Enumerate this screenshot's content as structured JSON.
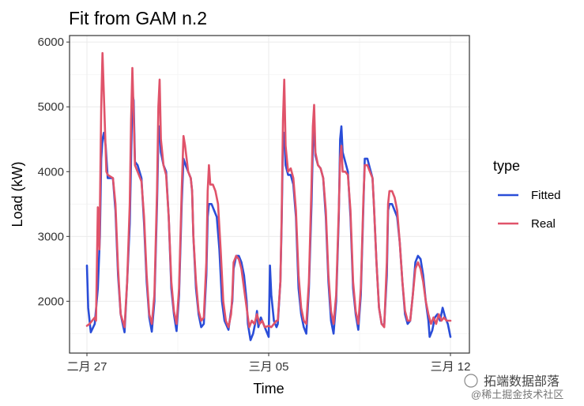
{
  "chart_data": {
    "type": "line",
    "title": "Fit from GAM n.2",
    "xlabel": "Time",
    "ylabel": "Load (kW)",
    "x_ticks": [
      "二月 27",
      "三月 05",
      "三月 12"
    ],
    "xlim": [
      0,
      14
    ],
    "ylim": [
      1200,
      6100
    ],
    "y_ticks": [
      2000,
      3000,
      4000,
      5000,
      6000
    ],
    "grid": true,
    "legend": {
      "title": "type",
      "position": "right"
    },
    "series": [
      {
        "name": "Fitted",
        "color": "#2a4dd8",
        "points": [
          [
            0.0,
            2550
          ],
          [
            0.05,
            1900
          ],
          [
            0.15,
            1520
          ],
          [
            0.3,
            1650
          ],
          [
            0.42,
            2200
          ],
          [
            0.5,
            3000
          ],
          [
            0.55,
            4200
          ],
          [
            0.6,
            4500
          ],
          [
            0.65,
            4600
          ],
          [
            0.72,
            4400
          ],
          [
            0.8,
            3900
          ],
          [
            1.0,
            3900
          ],
          [
            1.1,
            3400
          ],
          [
            1.2,
            2400
          ],
          [
            1.3,
            1800
          ],
          [
            1.45,
            1520
          ],
          [
            1.55,
            2300
          ],
          [
            1.65,
            3200
          ],
          [
            1.7,
            4200
          ],
          [
            1.75,
            5200
          ],
          [
            1.8,
            5100
          ],
          [
            1.85,
            4150
          ],
          [
            1.95,
            4100
          ],
          [
            2.1,
            3900
          ],
          [
            2.2,
            3200
          ],
          [
            2.3,
            2300
          ],
          [
            2.4,
            1750
          ],
          [
            2.5,
            1530
          ],
          [
            2.6,
            2000
          ],
          [
            2.7,
            3500
          ],
          [
            2.75,
            4500
          ],
          [
            2.8,
            4700
          ],
          [
            2.85,
            4300
          ],
          [
            2.95,
            4100
          ],
          [
            3.05,
            4000
          ],
          [
            3.15,
            3300
          ],
          [
            3.25,
            2200
          ],
          [
            3.35,
            1800
          ],
          [
            3.45,
            1540
          ],
          [
            3.55,
            2100
          ],
          [
            3.65,
            3500
          ],
          [
            3.72,
            4200
          ],
          [
            3.8,
            4100
          ],
          [
            3.9,
            4000
          ],
          [
            4.0,
            3900
          ],
          [
            4.05,
            3700
          ],
          [
            4.1,
            3000
          ],
          [
            4.2,
            2200
          ],
          [
            4.3,
            1800
          ],
          [
            4.4,
            1600
          ],
          [
            4.5,
            1650
          ],
          [
            4.6,
            2400
          ],
          [
            4.65,
            3300
          ],
          [
            4.7,
            3500
          ],
          [
            4.8,
            3500
          ],
          [
            4.9,
            3400
          ],
          [
            5.0,
            3300
          ],
          [
            5.1,
            2800
          ],
          [
            5.2,
            2000
          ],
          [
            5.3,
            1700
          ],
          [
            5.45,
            1560
          ],
          [
            5.6,
            2000
          ],
          [
            5.65,
            2500
          ],
          [
            5.75,
            2700
          ],
          [
            5.85,
            2700
          ],
          [
            5.95,
            2600
          ],
          [
            6.05,
            2400
          ],
          [
            6.15,
            2000
          ],
          [
            6.2,
            1650
          ],
          [
            6.3,
            1400
          ],
          [
            6.4,
            1500
          ],
          [
            6.5,
            1700
          ],
          [
            6.55,
            1850
          ],
          [
            6.6,
            1600
          ],
          [
            6.7,
            1750
          ],
          [
            6.8,
            1650
          ],
          [
            6.9,
            1550
          ],
          [
            7.0,
            1450
          ],
          [
            7.05,
            2550
          ],
          [
            7.1,
            2100
          ],
          [
            7.2,
            1700
          ],
          [
            7.3,
            1600
          ],
          [
            7.35,
            1650
          ],
          [
            7.45,
            2300
          ],
          [
            7.5,
            3200
          ],
          [
            7.55,
            4500
          ],
          [
            7.6,
            4600
          ],
          [
            7.65,
            4100
          ],
          [
            7.75,
            3950
          ],
          [
            7.85,
            3950
          ],
          [
            7.95,
            3800
          ],
          [
            8.05,
            3300
          ],
          [
            8.15,
            2200
          ],
          [
            8.25,
            1800
          ],
          [
            8.35,
            1600
          ],
          [
            8.45,
            1500
          ],
          [
            8.55,
            2200
          ],
          [
            8.65,
            3500
          ],
          [
            8.7,
            4400
          ],
          [
            8.75,
            4700
          ],
          [
            8.8,
            4250
          ],
          [
            8.9,
            4100
          ],
          [
            9.0,
            4050
          ],
          [
            9.1,
            3900
          ],
          [
            9.2,
            3300
          ],
          [
            9.3,
            2300
          ],
          [
            9.4,
            1700
          ],
          [
            9.5,
            1500
          ],
          [
            9.6,
            2000
          ],
          [
            9.7,
            3300
          ],
          [
            9.75,
            4500
          ],
          [
            9.8,
            4700
          ],
          [
            9.85,
            4300
          ],
          [
            9.95,
            4150
          ],
          [
            10.05,
            4000
          ],
          [
            10.15,
            3300
          ],
          [
            10.25,
            2200
          ],
          [
            10.35,
            1800
          ],
          [
            10.45,
            1560
          ],
          [
            10.55,
            2100
          ],
          [
            10.65,
            3500
          ],
          [
            10.7,
            4200
          ],
          [
            10.8,
            4200
          ],
          [
            10.9,
            4050
          ],
          [
            11.0,
            3900
          ],
          [
            11.05,
            3500
          ],
          [
            11.15,
            2600
          ],
          [
            11.25,
            1900
          ],
          [
            11.35,
            1650
          ],
          [
            11.45,
            1630
          ],
          [
            11.55,
            2400
          ],
          [
            11.6,
            3400
          ],
          [
            11.65,
            3500
          ],
          [
            11.75,
            3500
          ],
          [
            11.85,
            3400
          ],
          [
            11.95,
            3300
          ],
          [
            12.05,
            2900
          ],
          [
            12.15,
            2300
          ],
          [
            12.25,
            1800
          ],
          [
            12.35,
            1650
          ],
          [
            12.45,
            1700
          ],
          [
            12.55,
            2100
          ],
          [
            12.65,
            2600
          ],
          [
            12.75,
            2700
          ],
          [
            12.85,
            2650
          ],
          [
            12.95,
            2400
          ],
          [
            13.05,
            2000
          ],
          [
            13.15,
            1700
          ],
          [
            13.2,
            1450
          ],
          [
            13.3,
            1550
          ],
          [
            13.4,
            1750
          ],
          [
            13.5,
            1800
          ],
          [
            13.6,
            1700
          ],
          [
            13.7,
            1900
          ],
          [
            13.8,
            1750
          ],
          [
            13.9,
            1650
          ],
          [
            14.0,
            1450
          ]
        ]
      },
      {
        "name": "Real",
        "color": "#e0536a",
        "points": [
          [
            0.0,
            1620
          ],
          [
            0.1,
            1650
          ],
          [
            0.2,
            1700
          ],
          [
            0.3,
            1750
          ],
          [
            0.35,
            1700
          ],
          [
            0.42,
            3450
          ],
          [
            0.48,
            2800
          ],
          [
            0.55,
            5000
          ],
          [
            0.6,
            5830
          ],
          [
            0.65,
            5200
          ],
          [
            0.7,
            4600
          ],
          [
            0.75,
            4000
          ],
          [
            0.8,
            3950
          ],
          [
            1.0,
            3900
          ],
          [
            1.1,
            3500
          ],
          [
            1.2,
            2500
          ],
          [
            1.3,
            1800
          ],
          [
            1.45,
            1600
          ],
          [
            1.55,
            2300
          ],
          [
            1.65,
            3500
          ],
          [
            1.7,
            4800
          ],
          [
            1.75,
            5600
          ],
          [
            1.8,
            4900
          ],
          [
            1.85,
            4100
          ],
          [
            1.95,
            4000
          ],
          [
            2.1,
            3850
          ],
          [
            2.2,
            3300
          ],
          [
            2.3,
            2400
          ],
          [
            2.4,
            1800
          ],
          [
            2.5,
            1650
          ],
          [
            2.6,
            2100
          ],
          [
            2.7,
            3700
          ],
          [
            2.75,
            5000
          ],
          [
            2.8,
            5420
          ],
          [
            2.85,
            4500
          ],
          [
            2.95,
            4100
          ],
          [
            3.05,
            3950
          ],
          [
            3.15,
            3300
          ],
          [
            3.25,
            2300
          ],
          [
            3.35,
            1850
          ],
          [
            3.45,
            1650
          ],
          [
            3.55,
            2200
          ],
          [
            3.65,
            3700
          ],
          [
            3.72,
            4550
          ],
          [
            3.78,
            4400
          ],
          [
            3.9,
            4000
          ],
          [
            4.0,
            3900
          ],
          [
            4.05,
            3700
          ],
          [
            4.1,
            3000
          ],
          [
            4.2,
            2300
          ],
          [
            4.3,
            1850
          ],
          [
            4.4,
            1700
          ],
          [
            4.5,
            1750
          ],
          [
            4.6,
            2600
          ],
          [
            4.65,
            3700
          ],
          [
            4.7,
            4100
          ],
          [
            4.75,
            3800
          ],
          [
            4.85,
            3800
          ],
          [
            4.95,
            3700
          ],
          [
            5.05,
            3500
          ],
          [
            5.15,
            2800
          ],
          [
            5.25,
            2000
          ],
          [
            5.35,
            1700
          ],
          [
            5.45,
            1600
          ],
          [
            5.55,
            1800
          ],
          [
            5.6,
            2100
          ],
          [
            5.65,
            2600
          ],
          [
            5.75,
            2700
          ],
          [
            5.85,
            2650
          ],
          [
            5.95,
            2500
          ],
          [
            6.05,
            2200
          ],
          [
            6.15,
            1900
          ],
          [
            6.25,
            1600
          ],
          [
            6.35,
            1700
          ],
          [
            6.45,
            1650
          ],
          [
            6.55,
            1800
          ],
          [
            6.65,
            1650
          ],
          [
            6.75,
            1700
          ],
          [
            6.85,
            1600
          ],
          [
            7.0,
            1620
          ],
          [
            7.1,
            1600
          ],
          [
            7.2,
            1650
          ],
          [
            7.3,
            1700
          ],
          [
            7.35,
            1700
          ],
          [
            7.45,
            2300
          ],
          [
            7.5,
            3300
          ],
          [
            7.55,
            4800
          ],
          [
            7.6,
            5420
          ],
          [
            7.65,
            4400
          ],
          [
            7.75,
            4000
          ],
          [
            7.85,
            4050
          ],
          [
            7.95,
            3900
          ],
          [
            8.05,
            3400
          ],
          [
            8.15,
            2400
          ],
          [
            8.25,
            1900
          ],
          [
            8.35,
            1700
          ],
          [
            8.45,
            1650
          ],
          [
            8.55,
            2300
          ],
          [
            8.65,
            3800
          ],
          [
            8.7,
            4700
          ],
          [
            8.75,
            5030
          ],
          [
            8.8,
            4300
          ],
          [
            8.9,
            4100
          ],
          [
            9.0,
            4050
          ],
          [
            9.1,
            3900
          ],
          [
            9.2,
            3400
          ],
          [
            9.3,
            2400
          ],
          [
            9.4,
            1850
          ],
          [
            9.5,
            1650
          ],
          [
            9.6,
            2100
          ],
          [
            9.7,
            3400
          ],
          [
            9.75,
            4200
          ],
          [
            9.8,
            4400
          ],
          [
            9.85,
            4000
          ],
          [
            9.95,
            4000
          ],
          [
            10.05,
            3950
          ],
          [
            10.15,
            3400
          ],
          [
            10.25,
            2300
          ],
          [
            10.35,
            1850
          ],
          [
            10.45,
            1650
          ],
          [
            10.55,
            2200
          ],
          [
            10.65,
            3600
          ],
          [
            10.7,
            4100
          ],
          [
            10.8,
            4100
          ],
          [
            10.9,
            4000
          ],
          [
            11.0,
            3900
          ],
          [
            11.05,
            3500
          ],
          [
            11.15,
            2600
          ],
          [
            11.25,
            1900
          ],
          [
            11.35,
            1650
          ],
          [
            11.45,
            1600
          ],
          [
            11.55,
            2600
          ],
          [
            11.6,
            3500
          ],
          [
            11.65,
            3700
          ],
          [
            11.75,
            3700
          ],
          [
            11.85,
            3600
          ],
          [
            11.95,
            3400
          ],
          [
            12.05,
            2900
          ],
          [
            12.15,
            2300
          ],
          [
            12.25,
            1850
          ],
          [
            12.35,
            1700
          ],
          [
            12.45,
            1700
          ],
          [
            12.55,
            2100
          ],
          [
            12.65,
            2500
          ],
          [
            12.75,
            2600
          ],
          [
            12.85,
            2500
          ],
          [
            12.95,
            2300
          ],
          [
            13.05,
            2000
          ],
          [
            13.15,
            1800
          ],
          [
            13.25,
            1650
          ],
          [
            13.35,
            1750
          ],
          [
            13.45,
            1650
          ],
          [
            13.55,
            1800
          ],
          [
            13.65,
            1700
          ],
          [
            13.75,
            1750
          ],
          [
            13.85,
            1700
          ],
          [
            14.0,
            1700
          ]
        ]
      }
    ]
  },
  "watermark": {
    "main": "拓端数据部落",
    "sub": "@稀土掘金技术社区"
  }
}
